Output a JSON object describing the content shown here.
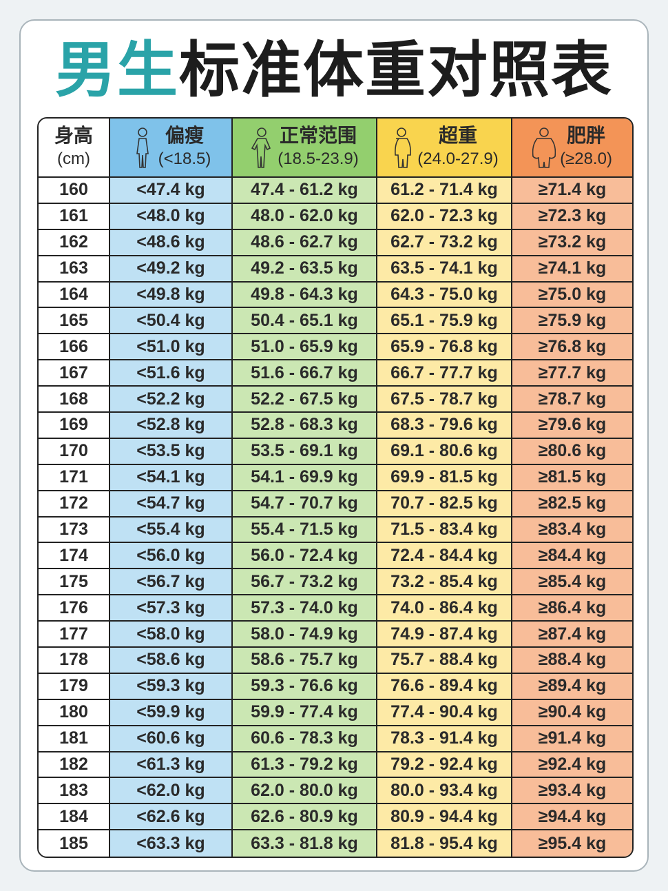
{
  "title": {
    "highlight": "男生",
    "rest": "标准体重对照表"
  },
  "header": [
    {
      "label": "身高",
      "sub": "(cm)"
    },
    {
      "label": "偏瘦",
      "sub": "(<18.5)"
    },
    {
      "label": "正常范围",
      "sub": "(18.5-23.9)"
    },
    {
      "label": "超重",
      "sub": "(24.0-27.9)"
    },
    {
      "label": "肥胖",
      "sub": "(≥28.0)"
    }
  ],
  "rows": [
    [
      "160",
      "<47.4 kg",
      "47.4 - 61.2 kg",
      "61.2 - 71.4 kg",
      "≥71.4 kg"
    ],
    [
      "161",
      "<48.0 kg",
      "48.0 - 62.0 kg",
      "62.0 - 72.3 kg",
      "≥72.3 kg"
    ],
    [
      "162",
      "<48.6 kg",
      "48.6 - 62.7 kg",
      "62.7 - 73.2 kg",
      "≥73.2 kg"
    ],
    [
      "163",
      "<49.2 kg",
      "49.2 - 63.5 kg",
      "63.5 - 74.1 kg",
      "≥74.1 kg"
    ],
    [
      "164",
      "<49.8 kg",
      "49.8 - 64.3 kg",
      "64.3 - 75.0 kg",
      "≥75.0 kg"
    ],
    [
      "165",
      "<50.4 kg",
      "50.4 - 65.1 kg",
      "65.1 - 75.9 kg",
      "≥75.9 kg"
    ],
    [
      "166",
      "<51.0 kg",
      "51.0 - 65.9 kg",
      "65.9 - 76.8 kg",
      "≥76.8 kg"
    ],
    [
      "167",
      "<51.6 kg",
      "51.6 - 66.7 kg",
      "66.7 - 77.7 kg",
      "≥77.7 kg"
    ],
    [
      "168",
      "<52.2 kg",
      "52.2 - 67.5 kg",
      "67.5 - 78.7 kg",
      "≥78.7 kg"
    ],
    [
      "169",
      "<52.8 kg",
      "52.8 - 68.3 kg",
      "68.3 - 79.6 kg",
      "≥79.6 kg"
    ],
    [
      "170",
      "<53.5 kg",
      "53.5 - 69.1 kg",
      "69.1 - 80.6 kg",
      "≥80.6 kg"
    ],
    [
      "171",
      "<54.1 kg",
      "54.1 - 69.9 kg",
      "69.9 - 81.5 kg",
      "≥81.5 kg"
    ],
    [
      "172",
      "<54.7 kg",
      "54.7 - 70.7 kg",
      "70.7 - 82.5 kg",
      "≥82.5 kg"
    ],
    [
      "173",
      "<55.4 kg",
      "55.4 - 71.5 kg",
      "71.5 - 83.4 kg",
      "≥83.4 kg"
    ],
    [
      "174",
      "<56.0 kg",
      "56.0 - 72.4 kg",
      "72.4 - 84.4 kg",
      "≥84.4 kg"
    ],
    [
      "175",
      "<56.7 kg",
      "56.7 - 73.2 kg",
      "73.2 - 85.4 kg",
      "≥85.4 kg"
    ],
    [
      "176",
      "<57.3 kg",
      "57.3 - 74.0 kg",
      "74.0 - 86.4 kg",
      "≥86.4 kg"
    ],
    [
      "177",
      "<58.0 kg",
      "58.0 - 74.9 kg",
      "74.9 - 87.4 kg",
      "≥87.4 kg"
    ],
    [
      "178",
      "<58.6 kg",
      "58.6 - 75.7 kg",
      "75.7 - 88.4 kg",
      "≥88.4 kg"
    ],
    [
      "179",
      "<59.3 kg",
      "59.3 - 76.6 kg",
      "76.6 - 89.4 kg",
      "≥89.4 kg"
    ],
    [
      "180",
      "<59.9 kg",
      "59.9 - 77.4 kg",
      "77.4 - 90.4 kg",
      "≥90.4 kg"
    ],
    [
      "181",
      "<60.6 kg",
      "60.6 - 78.3 kg",
      "78.3 - 91.4 kg",
      "≥91.4 kg"
    ],
    [
      "182",
      "<61.3 kg",
      "61.3 - 79.2 kg",
      "79.2 - 92.4 kg",
      "≥92.4 kg"
    ],
    [
      "183",
      "<62.0 kg",
      "62.0 - 80.0 kg",
      "80.0 - 93.4 kg",
      "≥93.4 kg"
    ],
    [
      "184",
      "<62.6 kg",
      "62.6 - 80.9 kg",
      "80.9 - 94.4 kg",
      "≥94.4 kg"
    ],
    [
      "185",
      "<63.3 kg",
      "63.3 - 81.8 kg",
      "81.8 - 95.4 kg",
      "≥95.4 kg"
    ]
  ]
}
